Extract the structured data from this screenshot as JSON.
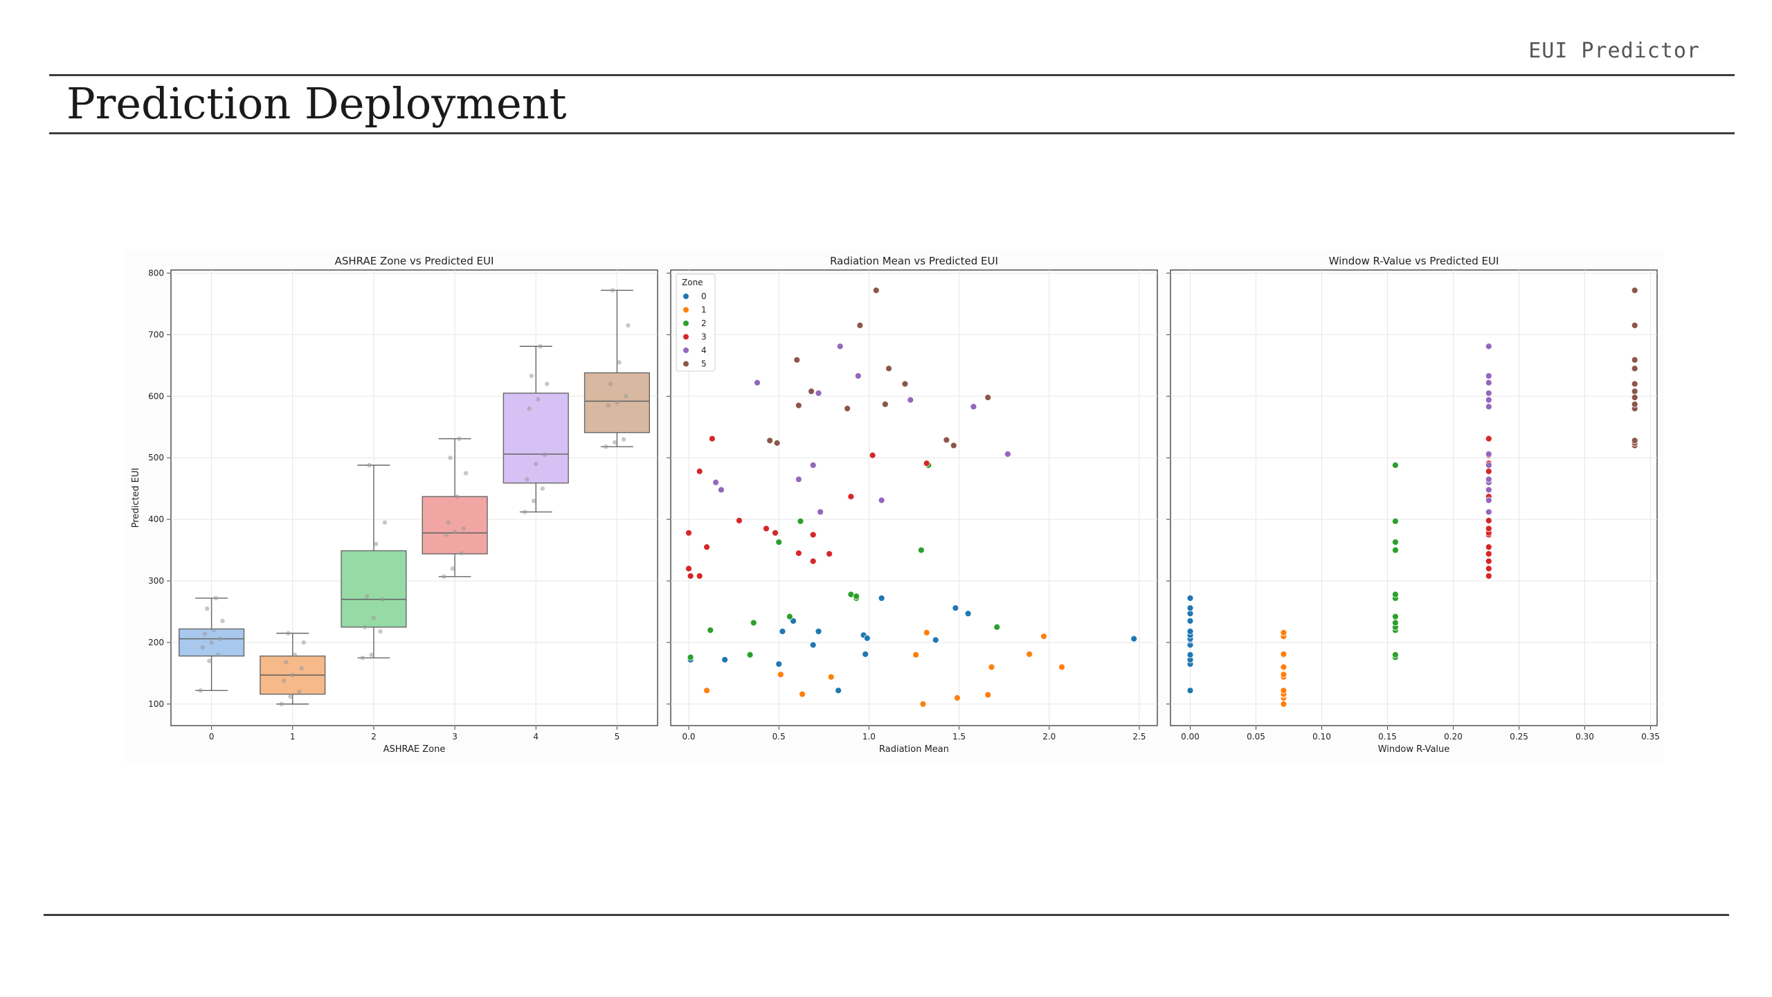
{
  "header": {
    "brand": "EUI Predictor",
    "title": "Prediction Deployment"
  },
  "colors": {
    "zone": [
      "#1f77b4",
      "#ff7f0e",
      "#2ca02c",
      "#d62728",
      "#9467bd",
      "#8c564b"
    ],
    "box_fill": [
      "#a8c8ee",
      "#f5b98a",
      "#96dba6",
      "#f2a6a4",
      "#d6c1f5",
      "#d8b8a0"
    ],
    "rule": "#3d3d3d"
  },
  "chart_data": [
    {
      "type": "box",
      "title": "ASHRAE Zone vs Predicted EUI",
      "xlabel": "ASHRAE Zone",
      "ylabel": "Predicted EUI",
      "categories": [
        "0",
        "1",
        "2",
        "3",
        "4",
        "5"
      ],
      "ylim": [
        65,
        805
      ],
      "yticks": [
        100,
        200,
        300,
        400,
        500,
        600,
        700,
        800
      ],
      "grid": true,
      "boxes": [
        {
          "min": 122,
          "q1": 178,
          "median": 206,
          "q3": 222,
          "max": 272
        },
        {
          "min": 100,
          "q1": 116,
          "median": 147,
          "q3": 178,
          "max": 215
        },
        {
          "min": 175,
          "q1": 225,
          "median": 270,
          "q3": 349,
          "max": 488
        },
        {
          "min": 307,
          "q1": 344,
          "median": 378,
          "q3": 437,
          "max": 531
        },
        {
          "min": 412,
          "q1": 459,
          "median": 506,
          "q3": 605,
          "max": 681
        },
        {
          "min": 518,
          "q1": 541,
          "median": 592,
          "q3": 638,
          "max": 772
        }
      ],
      "points": [
        [
          122,
          170,
          180,
          192,
          200,
          206,
          214,
          220,
          235,
          255,
          272
        ],
        [
          100,
          112,
          120,
          138,
          147,
          158,
          168,
          180,
          200,
          215
        ],
        [
          175,
          180,
          218,
          225,
          240,
          270,
          275,
          360,
          395,
          488
        ],
        [
          307,
          320,
          345,
          375,
          380,
          385,
          395,
          437,
          475,
          500,
          531
        ],
        [
          412,
          430,
          450,
          465,
          490,
          505,
          580,
          595,
          620,
          633,
          681
        ],
        [
          518,
          525,
          530,
          585,
          590,
          600,
          620,
          655,
          715,
          772
        ]
      ]
    },
    {
      "type": "scatter",
      "title": "Radiation Mean vs Predicted EUI",
      "xlabel": "Radiation Mean",
      "xlim": [
        -0.1,
        2.6
      ],
      "ylim": [
        65,
        805
      ],
      "xticks": [
        0.0,
        0.5,
        1.0,
        1.5,
        2.0,
        2.5
      ],
      "xtick_labels": [
        "0.0",
        "0.5",
        "1.0",
        "1.5",
        "2.0",
        "2.5"
      ],
      "grid": true,
      "legend": {
        "title": "Zone",
        "placement": "top-left",
        "entries": [
          "0",
          "1",
          "2",
          "3",
          "4",
          "5"
        ]
      },
      "series": [
        {
          "name": "0",
          "points": [
            [
              0.01,
              172
            ],
            [
              0.2,
              172
            ],
            [
              0.5,
              165
            ],
            [
              0.52,
              218
            ],
            [
              0.58,
              235
            ],
            [
              0.69,
              196
            ],
            [
              0.72,
              218
            ],
            [
              0.83,
              122
            ],
            [
              0.97,
              212
            ],
            [
              0.99,
              207
            ],
            [
              0.98,
              181
            ],
            [
              1.07,
              272
            ],
            [
              1.37,
              204
            ],
            [
              1.48,
              256
            ],
            [
              1.55,
              247
            ],
            [
              2.47,
              206
            ]
          ]
        },
        {
          "name": "1",
          "points": [
            [
              0.1,
              122
            ],
            [
              0.51,
              148
            ],
            [
              0.63,
              116
            ],
            [
              0.79,
              144
            ],
            [
              1.26,
              180
            ],
            [
              1.3,
              100
            ],
            [
              1.32,
              216
            ],
            [
              1.49,
              110
            ],
            [
              1.66,
              115
            ],
            [
              1.68,
              160
            ],
            [
              1.89,
              181
            ],
            [
              1.97,
              210
            ],
            [
              2.07,
              160
            ]
          ]
        },
        {
          "name": "2",
          "points": [
            [
              0.01,
              176
            ],
            [
              0.12,
              220
            ],
            [
              0.34,
              180
            ],
            [
              0.36,
              232
            ],
            [
              0.56,
              242
            ],
            [
              0.62,
              397
            ],
            [
              0.5,
              363
            ],
            [
              0.9,
              278
            ],
            [
              0.93,
              272
            ],
            [
              0.93,
              275
            ],
            [
              1.29,
              350
            ],
            [
              1.33,
              488
            ],
            [
              1.71,
              225
            ]
          ]
        },
        {
          "name": "3",
          "points": [
            [
              0.0,
              378
            ],
            [
              0.0,
              320
            ],
            [
              0.01,
              308
            ],
            [
              0.06,
              478
            ],
            [
              0.06,
              308
            ],
            [
              0.1,
              355
            ],
            [
              0.13,
              531
            ],
            [
              0.28,
              398
            ],
            [
              0.43,
              385
            ],
            [
              0.48,
              378
            ],
            [
              0.61,
              345
            ],
            [
              0.69,
              375
            ],
            [
              0.69,
              332
            ],
            [
              0.78,
              344
            ],
            [
              0.9,
              437
            ],
            [
              1.02,
              504
            ],
            [
              1.32,
              491
            ]
          ]
        },
        {
          "name": "4",
          "points": [
            [
              0.15,
              460
            ],
            [
              0.18,
              448
            ],
            [
              0.38,
              622
            ],
            [
              0.61,
              465
            ],
            [
              0.69,
              488
            ],
            [
              0.72,
              605
            ],
            [
              0.73,
              412
            ],
            [
              0.84,
              681
            ],
            [
              0.94,
              633
            ],
            [
              1.07,
              431
            ],
            [
              1.23,
              594
            ],
            [
              1.58,
              583
            ],
            [
              1.77,
              506
            ]
          ]
        },
        {
          "name": "5",
          "points": [
            [
              0.45,
              528
            ],
            [
              0.49,
              524
            ],
            [
              0.6,
              659
            ],
            [
              0.61,
              585
            ],
            [
              0.68,
              608
            ],
            [
              0.88,
              580
            ],
            [
              0.95,
              715
            ],
            [
              1.04,
              772
            ],
            [
              1.09,
              587
            ],
            [
              1.11,
              645
            ],
            [
              1.2,
              620
            ],
            [
              1.43,
              529
            ],
            [
              1.47,
              520
            ],
            [
              1.66,
              598
            ]
          ]
        }
      ]
    },
    {
      "type": "scatter",
      "title": "Window R-Value vs Predicted EUI",
      "xlabel": "Window R-Value",
      "xlim": [
        -0.015,
        0.355
      ],
      "ylim": [
        65,
        805
      ],
      "xticks": [
        0.0,
        0.05,
        0.1,
        0.15,
        0.2,
        0.25,
        0.3,
        0.35
      ],
      "xtick_labels": [
        "0.00",
        "0.05",
        "0.10",
        "0.15",
        "0.20",
        "0.25",
        "0.30",
        "0.35"
      ],
      "grid": true,
      "series": [
        {
          "name": "0",
          "x": 0.0,
          "values": [
            122,
            165,
            172,
            180,
            196,
            204,
            206,
            212,
            218,
            235,
            247,
            256,
            272
          ]
        },
        {
          "name": "1",
          "x": 0.071,
          "values": [
            100,
            110,
            115,
            116,
            122,
            144,
            148,
            160,
            180,
            181,
            210,
            216
          ]
        },
        {
          "name": "2",
          "x": 0.156,
          "values": [
            176,
            180,
            220,
            225,
            232,
            242,
            272,
            278,
            350,
            363,
            397,
            488
          ]
        },
        {
          "name": "3",
          "x": 0.227,
          "values": [
            308,
            320,
            332,
            344,
            355,
            375,
            378,
            385,
            398,
            437,
            478,
            491,
            504,
            531
          ]
        },
        {
          "name": "4",
          "x": 0.227,
          "values": [
            412,
            431,
            448,
            460,
            465,
            488,
            506,
            583,
            594,
            605,
            622,
            633,
            681
          ]
        },
        {
          "name": "5",
          "x": 0.338,
          "values": [
            520,
            524,
            528,
            580,
            587,
            598,
            608,
            620,
            645,
            659,
            715,
            772
          ]
        }
      ]
    }
  ]
}
